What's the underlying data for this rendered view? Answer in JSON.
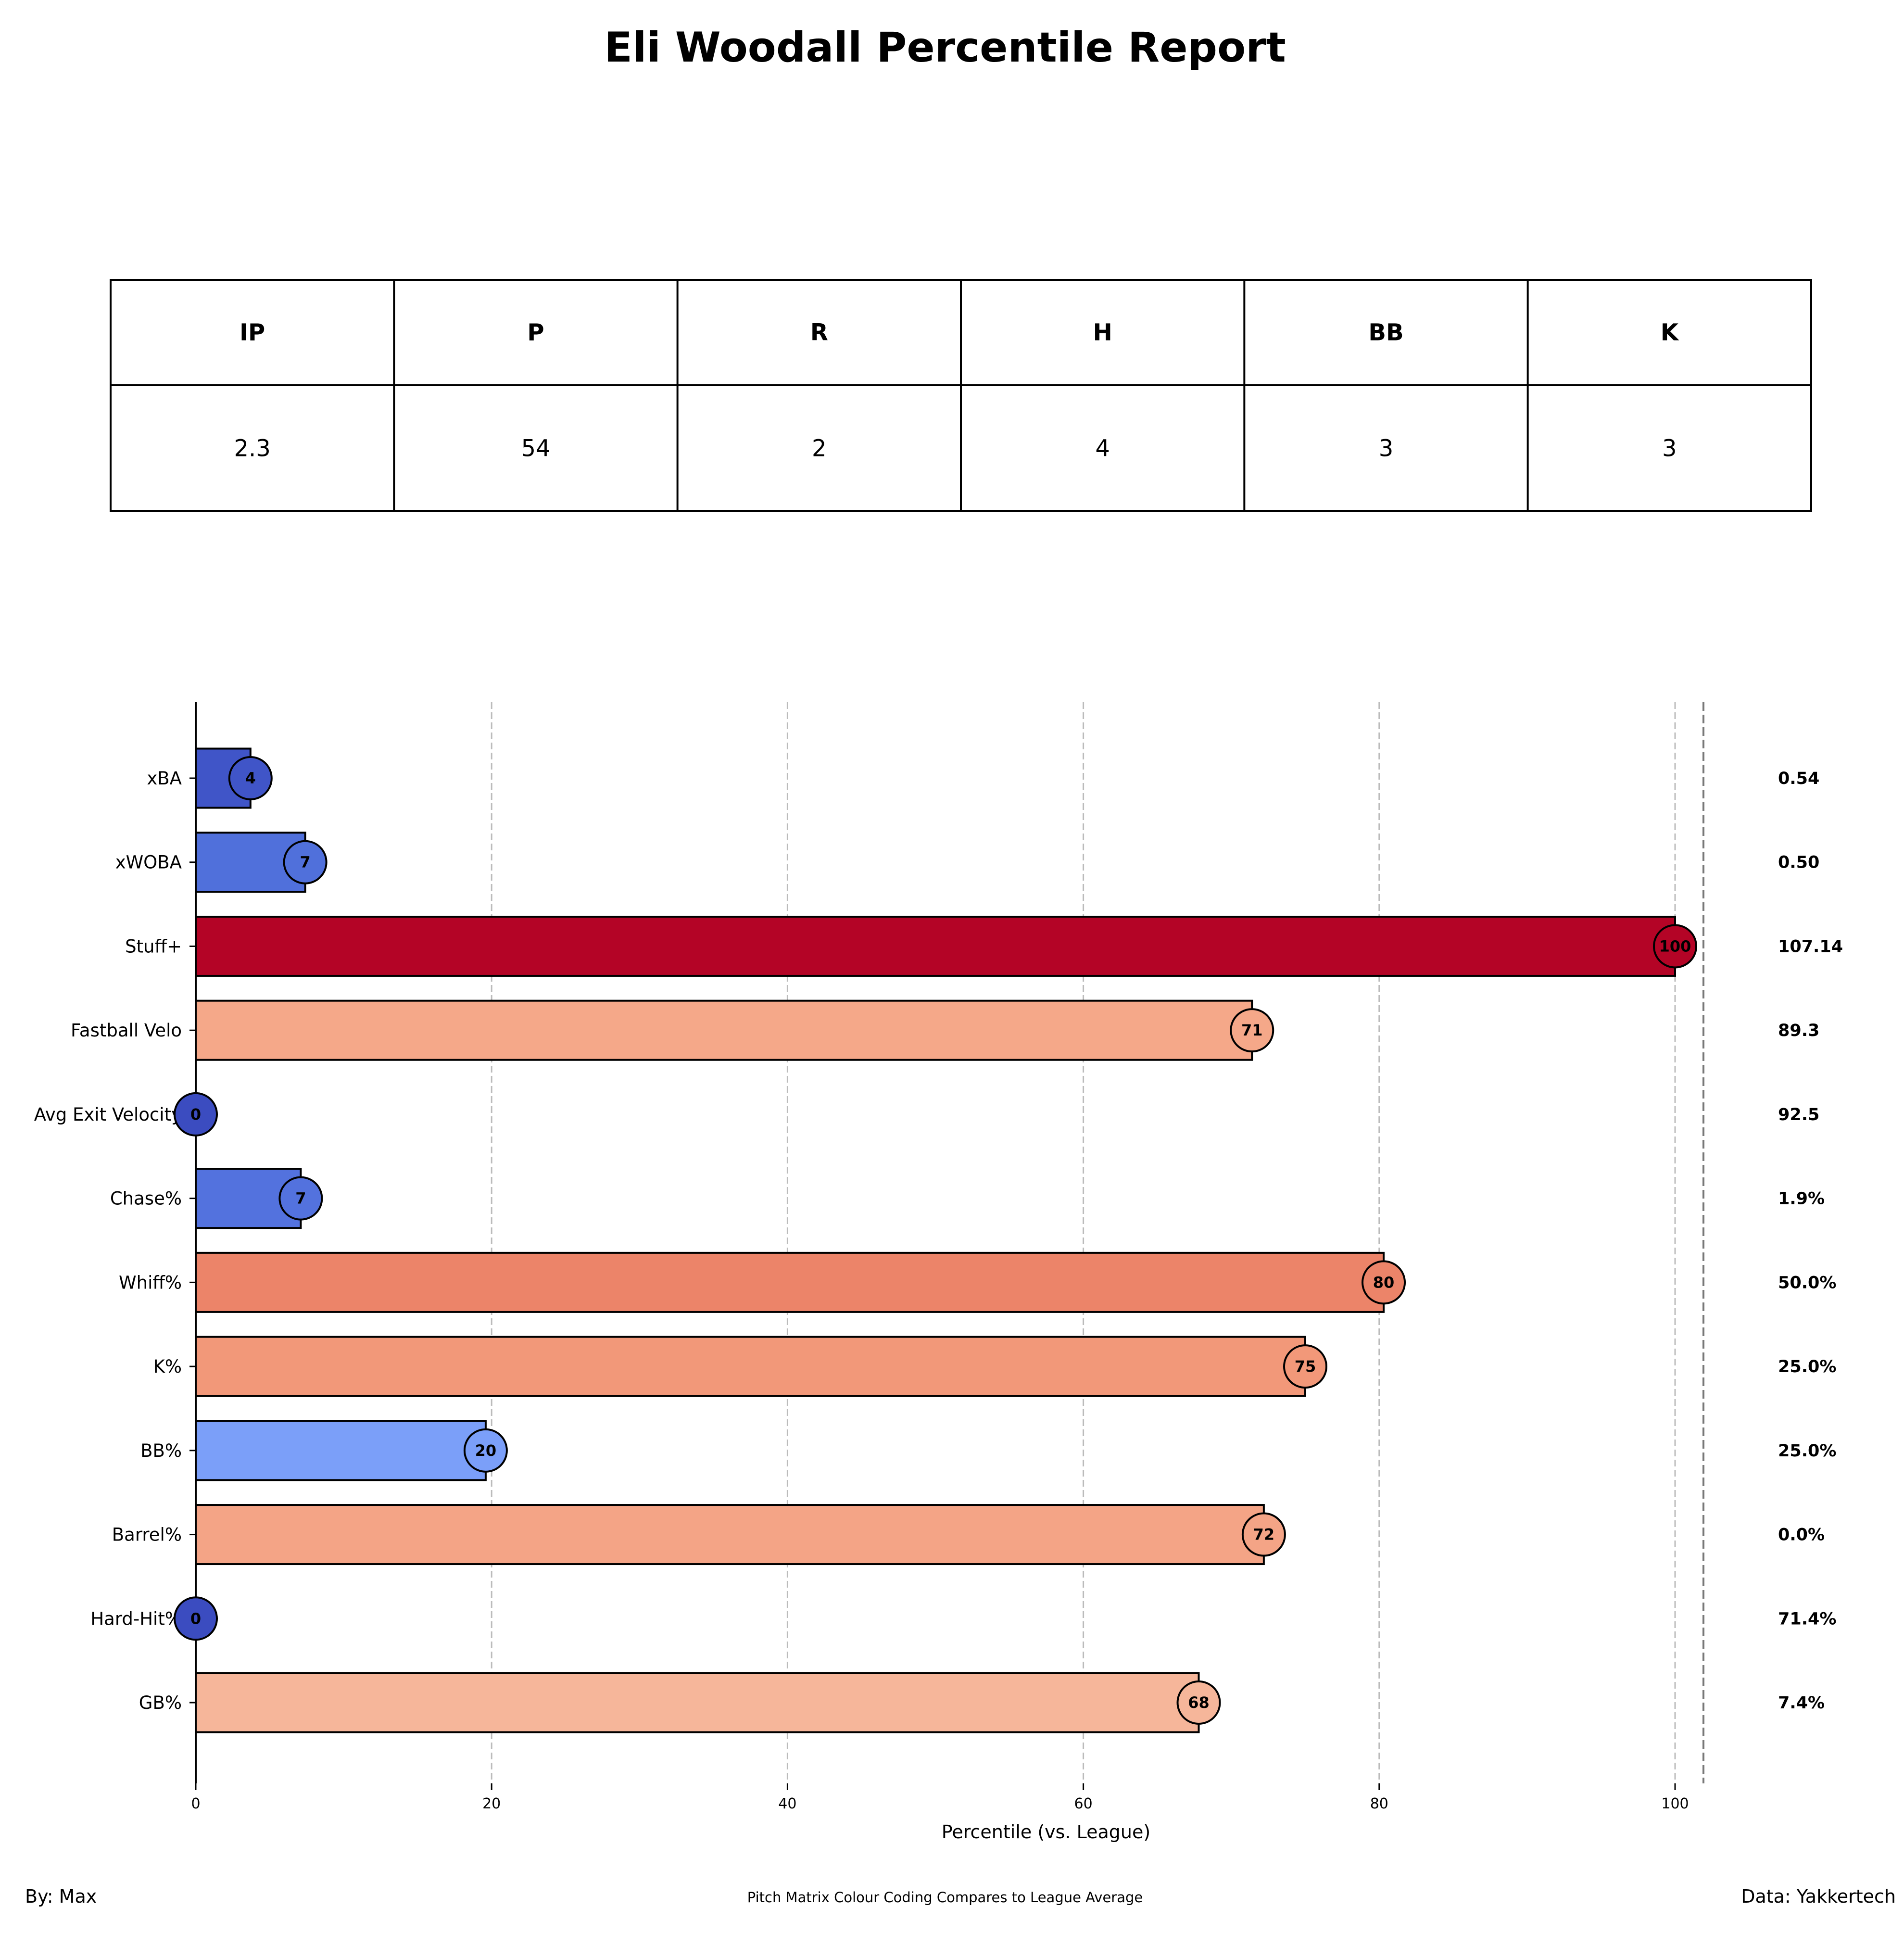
{
  "title": "Eli Woodall Percentile Report",
  "stats_table": {
    "headers": [
      "IP",
      "P",
      "R",
      "H",
      "BB",
      "K"
    ],
    "values": [
      "2.3",
      "54",
      "2",
      "4",
      "3",
      "3"
    ]
  },
  "chart_data": {
    "type": "bar",
    "orientation": "horizontal",
    "xlabel": "Percentile (vs. League)",
    "xlim": [
      0,
      100
    ],
    "xticks": [
      "0",
      "20",
      "40",
      "60",
      "80",
      "100"
    ],
    "grid": "vertical dashed",
    "categories": [
      "xBA",
      "xWOBA",
      "Stuff+",
      "Fastball Velo",
      "Avg Exit Velocity",
      "Chase%",
      "Whiff%",
      "K%",
      "BB%",
      "Barrel%",
      "Hard-Hit%",
      "GB%"
    ],
    "percentiles": [
      4,
      7,
      100,
      71,
      0,
      7,
      80,
      75,
      20,
      72,
      0,
      68
    ],
    "bar_values": [
      3.7,
      7.4,
      100,
      71.4,
      0,
      7.1,
      80.3,
      75,
      19.6,
      72.2,
      0,
      67.8
    ],
    "raw_values": [
      "0.54",
      "0.50",
      "107.14",
      "89.3",
      "92.5",
      "1.9%",
      "50.0%",
      "25.0%",
      "25.0%",
      "0.0%",
      "71.4%",
      "7.4%"
    ],
    "colors": [
      "#4055c8",
      "#5070db",
      "#b40426",
      "#f5a889",
      "#3b4cc0",
      "#5372de",
      "#ec8469",
      "#f29879",
      "#7b9ff9",
      "#f4a486",
      "#3b4cc0",
      "#f6b69a"
    ]
  },
  "footer": {
    "left": "By: Max",
    "center": "Pitch Matrix Colour Coding Compares to League Average",
    "right": "Data: Yakkertech"
  }
}
